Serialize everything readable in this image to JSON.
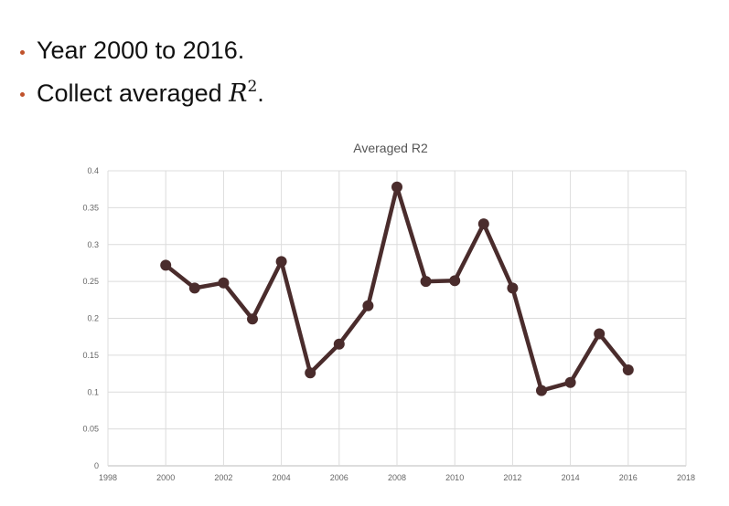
{
  "bullets": [
    {
      "text": "Year 2000 to 2016."
    },
    {
      "prefix": "Collect averaged ",
      "math": "R",
      "sup": "2",
      "suffix": "."
    }
  ],
  "colors": {
    "bullet": "#c0522b",
    "series": "#4a2c2c",
    "grid": "#dcdcdc"
  },
  "chart_data": {
    "type": "line",
    "title": "Averaged R2",
    "xlabel": "",
    "ylabel": "",
    "xlim": [
      1998,
      2018
    ],
    "ylim": [
      0,
      0.4
    ],
    "xticks": [
      1998,
      2000,
      2002,
      2004,
      2006,
      2008,
      2010,
      2012,
      2014,
      2016,
      2018
    ],
    "yticks": [
      0,
      0.05,
      0.1,
      0.15,
      0.2,
      0.25,
      0.3,
      0.35,
      0.4
    ],
    "grid": true,
    "series": [
      {
        "x": [
          2000,
          2001,
          2002,
          2003,
          2004,
          2005,
          2006,
          2007,
          2008,
          2009,
          2010,
          2011,
          2012,
          2013,
          2014,
          2015,
          2016
        ],
        "values": [
          0.272,
          0.241,
          0.248,
          0.199,
          0.277,
          0.126,
          0.165,
          0.217,
          0.378,
          0.25,
          0.251,
          0.328,
          0.241,
          0.102,
          0.113,
          0.179,
          0.13
        ]
      }
    ]
  }
}
